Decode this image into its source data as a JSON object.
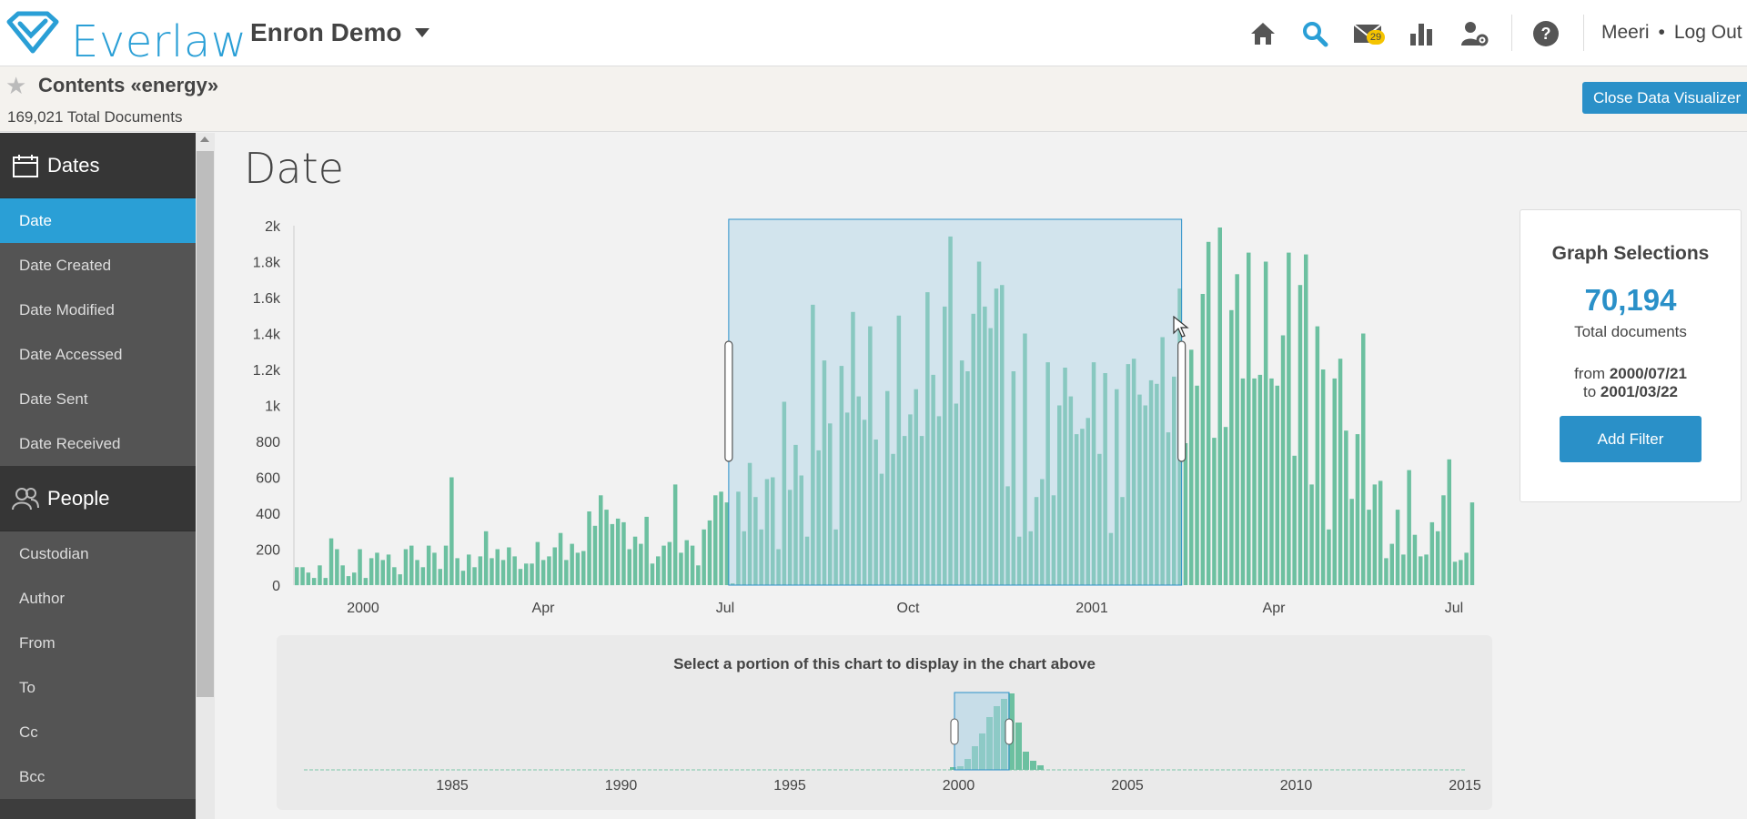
{
  "app": {
    "brand": "Everlaw",
    "project": "Enron Demo",
    "mail_badge": "29",
    "user": "Meeri",
    "logout": "Log Out",
    "brand_color": "#2a9fd6"
  },
  "search": {
    "title": "Contents «energy»",
    "doc_count": "169,021 Total Documents",
    "close_button": "Close Data Visualizer"
  },
  "sidebar": {
    "dates_header": "Dates",
    "date_items": [
      "Date",
      "Date Created",
      "Date Modified",
      "Date Accessed",
      "Date Sent",
      "Date Received"
    ],
    "people_header": "People",
    "people_items": [
      "Custodian",
      "Author",
      "From",
      "To",
      "Cc",
      "Bcc"
    ]
  },
  "main": {
    "title": "Date"
  },
  "panel": {
    "title": "Graph Selections",
    "count": "70,194",
    "count_label": "Total documents",
    "from_label": "from",
    "from_date": "2000/07/21",
    "to_label": "to",
    "to_date": "2001/03/22",
    "button": "Add Filter"
  },
  "overview": {
    "label": "Select a portion of this chart to display in the chart above",
    "ticks": [
      "1985",
      "1990",
      "1995",
      "2000",
      "2005",
      "2010",
      "2015"
    ]
  },
  "chart_data": {
    "type": "bar",
    "ylim": [
      0,
      2000
    ],
    "yticks": [
      "0",
      "200",
      "400",
      "600",
      "800",
      "1k",
      "1.2k",
      "1.4k",
      "1.6k",
      "1.8k",
      "2k"
    ],
    "xticks": [
      "2000",
      "Apr",
      "Jul",
      "Oct",
      "2001",
      "Apr",
      "Jul"
    ],
    "bar_color": "#6cc0a0",
    "selection": {
      "start_index": 76,
      "end_index": 155
    },
    "values": [
      100,
      100,
      70,
      40,
      110,
      40,
      260,
      200,
      110,
      50,
      70,
      200,
      40,
      150,
      180,
      140,
      170,
      100,
      60,
      200,
      220,
      140,
      100,
      220,
      180,
      90,
      220,
      600,
      150,
      80,
      170,
      100,
      160,
      300,
      150,
      200,
      140,
      210,
      160,
      90,
      120,
      120,
      240,
      140,
      160,
      210,
      290,
      140,
      230,
      180,
      190,
      410,
      330,
      500,
      420,
      340,
      370,
      350,
      200,
      270,
      230,
      380,
      120,
      160,
      220,
      240,
      560,
      180,
      250,
      220,
      110,
      310,
      360,
      500,
      520,
      460,
      10,
      520,
      300,
      680,
      490,
      310,
      590,
      600,
      200,
      1020,
      530,
      780,
      610,
      270,
      1560,
      750,
      1250,
      900,
      310,
      1220,
      960,
      1520,
      1050,
      920,
      1440,
      810,
      620,
      1080,
      730,
      1500,
      830,
      950,
      1090,
      830,
      1630,
      1170,
      940,
      1550,
      1940,
      1010,
      1250,
      1190,
      1510,
      1800,
      1550,
      1430,
      1650,
      1670,
      550,
      1190,
      270,
      1400,
      300,
      490,
      590,
      1240,
      500,
      1000,
      1210,
      1050,
      840,
      870,
      930,
      1240,
      730,
      1180,
      290,
      1090,
      490,
      1230,
      1260,
      1060,
      1000,
      1140,
      1120,
      1380,
      850,
      1160,
      1650,
      790,
      1310,
      1110,
      1620,
      1910,
      820,
      1990,
      880,
      1530,
      1730,
      1150,
      1850,
      1150,
      1170,
      1800,
      1150,
      1110,
      1390,
      1850,
      720,
      1670,
      1840,
      560,
      1440,
      1200,
      310,
      1150,
      1260,
      860,
      480,
      840,
      1400,
      420,
      560,
      580,
      150,
      230,
      420,
      170,
      640,
      280,
      160,
      170,
      350,
      300,
      500,
      700,
      130,
      140,
      180,
      460
    ]
  }
}
